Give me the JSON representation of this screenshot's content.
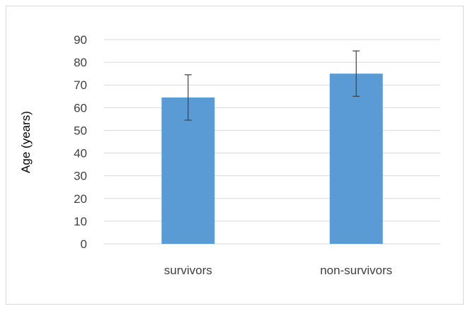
{
  "chart_data": {
    "type": "bar",
    "categories": [
      "survivors",
      "non-survivors"
    ],
    "values": [
      64.5,
      75.0
    ],
    "error": [
      10,
      10
    ],
    "title": "",
    "xlabel": "",
    "ylabel": "Age (years)",
    "ylim": [
      0,
      90
    ],
    "yticks": [
      "0",
      "10",
      "20",
      "30",
      "40",
      "50",
      "60",
      "70",
      "80",
      "90"
    ],
    "grid": true,
    "legend": "none",
    "colors": {
      "bar": "#5b9bd5",
      "grid": "#d9d9d9",
      "error_bar": "#404040",
      "tick_text": "#404040"
    }
  }
}
